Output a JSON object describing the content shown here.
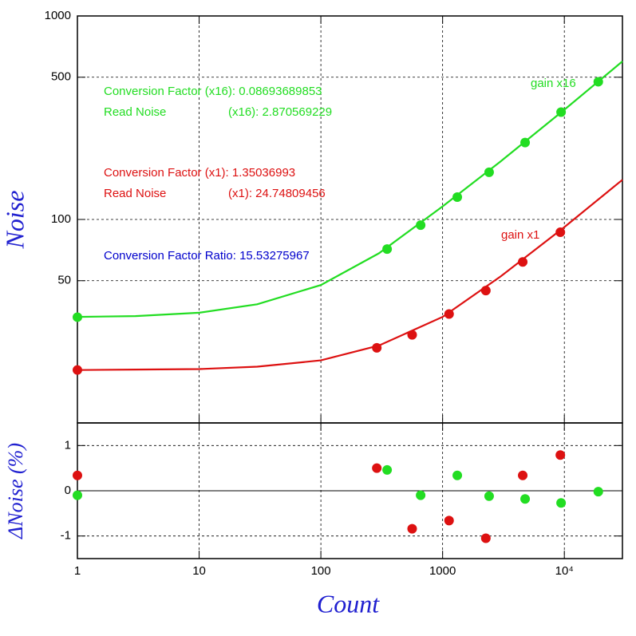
{
  "chart_data": [
    {
      "type": "scatter",
      "ylabel": "Noise",
      "log_x": true,
      "log_y": true,
      "xlim": [
        1,
        30000
      ],
      "ylim": [
        10,
        1000
      ],
      "yticks": [
        50,
        100,
        500,
        1000
      ],
      "grid": true,
      "series": [
        {
          "name": "gain x16",
          "color": "#22dd22",
          "x": [
            1,
            350,
            660,
            1320,
            2410,
            4760,
            9400,
            19000
          ],
          "values": [
            33.1,
            71.5,
            93.8,
            128.8,
            170.6,
            238.8,
            337,
            475
          ],
          "fit": {
            "x": [
              1,
              3,
              10,
              30,
              100,
              300,
              1000,
              3000,
              10000,
              30000
            ],
            "values": [
              33.2,
              33.5,
              34.8,
              38.3,
              47.6,
              68.2,
              116,
              193,
              346,
              598
            ]
          }
        },
        {
          "name": "gain x1",
          "color": "#dd1111",
          "x": [
            1,
            288,
            562,
            1130,
            2265,
            4550,
            9270
          ],
          "values": [
            18.2,
            23.4,
            27.1,
            34.3,
            44.7,
            61.8,
            86.5
          ],
          "fit": {
            "x": [
              1,
              3,
              10,
              30,
              100,
              300,
              1000,
              3000,
              10000,
              30000
            ],
            "values": [
              18.2,
              18.3,
              18.4,
              18.9,
              20.3,
              24.0,
              33.2,
              52.5,
              91.7,
              156.7
            ]
          }
        }
      ],
      "annotations": [
        {
          "text": "Conversion Factor (x16): 0.08693689853",
          "color": "#22dd22"
        },
        {
          "text": "Read Noise",
          "color": "#22dd22"
        },
        {
          "text": "(x16): 2.870569229",
          "color": "#22dd22"
        },
        {
          "text": "Conversion Factor (x1): 1.35036993",
          "color": "#dd1111"
        },
        {
          "text": "Read Noise",
          "color": "#dd1111"
        },
        {
          "text": "(x1): 24.74809456",
          "color": "#dd1111"
        },
        {
          "text": "Conversion Factor Ratio: 15.53275967",
          "color": "#0000cc"
        }
      ]
    },
    {
      "type": "scatter",
      "xlabel": "Count",
      "ylabel": "ΔNoise (%)",
      "log_x": true,
      "xlim": [
        1,
        30000
      ],
      "ylim": [
        -1.5,
        1.5
      ],
      "xticks": [
        1,
        10,
        100,
        1000,
        {
          "value": 10000,
          "label": "10⁴"
        }
      ],
      "yticks": [
        -1,
        0,
        1
      ],
      "grid": true,
      "series": [
        {
          "name": "gain x16",
          "color": "#22dd22",
          "x": [
            1,
            350,
            660,
            1320,
            2410,
            4760,
            9400,
            19000
          ],
          "values": [
            -0.1,
            0.46,
            -0.1,
            0.34,
            -0.12,
            -0.18,
            -0.27,
            -0.02
          ]
        },
        {
          "name": "gain x1",
          "color": "#dd1111",
          "x": [
            1,
            288,
            562,
            1130,
            2265,
            4550,
            9270
          ],
          "values": [
            0.34,
            0.5,
            -0.84,
            -0.66,
            -1.05,
            0.34,
            0.79
          ]
        }
      ]
    }
  ]
}
